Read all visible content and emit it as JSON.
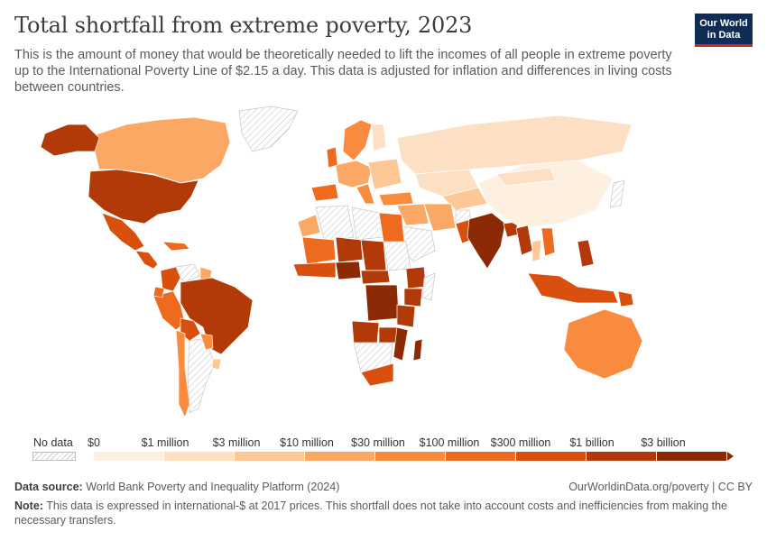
{
  "title": "Total shortfall from extreme poverty, 2023",
  "subtitle": "This is the amount of money that would be theoretically needed to lift the incomes of all people in extreme poverty up to the International Poverty Line of $2.15 a day. This data is adjusted for inflation and differences in living costs between countries.",
  "logo": {
    "line1": "Our World",
    "line2": "in Data"
  },
  "legend": {
    "no_data": "No data",
    "bins": [
      "$0",
      "$1 million",
      "$3 million",
      "$10 million",
      "$30 million",
      "$100 million",
      "$300 million",
      "$1 billion",
      "$3 billion"
    ],
    "colors": [
      "#fef0e1",
      "#fde0c4",
      "#fdc796",
      "#fca865",
      "#f98b3f",
      "#ee6a1f",
      "#d94f0e",
      "#b23a09",
      "#8c2a06"
    ]
  },
  "colors": {
    "no_data_hatch": "#d0d0d0",
    "border": "#ffffff",
    "background": "#ffffff"
  },
  "map_regions": [
    {
      "name": "Canada",
      "level": 3
    },
    {
      "name": "Alaska (United States)",
      "level": 7
    },
    {
      "name": "Greenland",
      "level": -1
    },
    {
      "name": "United States",
      "level": 7
    },
    {
      "name": "Mexico",
      "level": 6
    },
    {
      "name": "Central America",
      "level": 6
    },
    {
      "name": "Caribbean",
      "level": 5
    },
    {
      "name": "Colombia",
      "level": 6
    },
    {
      "name": "Venezuela",
      "level": -1
    },
    {
      "name": "Guyana-Suriname",
      "level": 3
    },
    {
      "name": "Brazil",
      "level": 7
    },
    {
      "name": "Peru",
      "level": 5
    },
    {
      "name": "Ecuador",
      "level": 5
    },
    {
      "name": "Bolivia",
      "level": 6
    },
    {
      "name": "Chile",
      "level": 4
    },
    {
      "name": "Argentina",
      "level": -1
    },
    {
      "name": "Paraguay",
      "level": 4
    },
    {
      "name": "Uruguay",
      "level": 2
    },
    {
      "name": "Norway-Sweden",
      "level": 4
    },
    {
      "name": "Finland",
      "level": 1
    },
    {
      "name": "Western Europe",
      "level": 3
    },
    {
      "name": "Spain-Portugal",
      "level": 5
    },
    {
      "name": "United Kingdom",
      "level": 5
    },
    {
      "name": "Italy",
      "level": 4
    },
    {
      "name": "Eastern Europe",
      "level": 2
    },
    {
      "name": "Russia",
      "level": 1
    },
    {
      "name": "Kazakhstan",
      "level": 1
    },
    {
      "name": "Central Asia",
      "level": 2
    },
    {
      "name": "Turkey",
      "level": 4
    },
    {
      "name": "Middle East",
      "level": 3
    },
    {
      "name": "Iran",
      "level": 3
    },
    {
      "name": "Saudi Arabia",
      "level": -1
    },
    {
      "name": "Afghanistan",
      "level": -1
    },
    {
      "name": "Pakistan",
      "level": 6
    },
    {
      "name": "India",
      "level": 8
    },
    {
      "name": "Bangladesh",
      "level": 7
    },
    {
      "name": "China",
      "level": 0
    },
    {
      "name": "Mongolia",
      "level": 1
    },
    {
      "name": "Myanmar",
      "level": 7
    },
    {
      "name": "Thailand",
      "level": 2
    },
    {
      "name": "Vietnam-Laos",
      "level": 5
    },
    {
      "name": "Philippines",
      "level": 7
    },
    {
      "name": "Indonesia",
      "level": 6
    },
    {
      "name": "Papua New Guinea",
      "level": 6
    },
    {
      "name": "Japan",
      "level": -1
    },
    {
      "name": "Australia",
      "level": 4
    },
    {
      "name": "Libya",
      "level": -1
    },
    {
      "name": "Algeria",
      "level": -1
    },
    {
      "name": "Morocco",
      "level": 3
    },
    {
      "name": "Egypt",
      "level": 5
    },
    {
      "name": "Sudan",
      "level": -1
    },
    {
      "name": "Mali",
      "level": 5
    },
    {
      "name": "Niger",
      "level": 7
    },
    {
      "name": "Chad",
      "level": 7
    },
    {
      "name": "West Africa coast",
      "level": 6
    },
    {
      "name": "Nigeria",
      "level": 8
    },
    {
      "name": "Central African Republic",
      "level": 7
    },
    {
      "name": "Ethiopia",
      "level": 7
    },
    {
      "name": "Somalia",
      "level": -1
    },
    {
      "name": "Kenya",
      "level": 7
    },
    {
      "name": "DR Congo",
      "level": 8
    },
    {
      "name": "Tanzania",
      "level": 7
    },
    {
      "name": "Angola",
      "level": 7
    },
    {
      "name": "Zambia",
      "level": 7
    },
    {
      "name": "Mozambique",
      "level": 8
    },
    {
      "name": "Namibia-Botswana",
      "level": -1
    },
    {
      "name": "South Africa",
      "level": 6
    },
    {
      "name": "Madagascar",
      "level": 8
    }
  ],
  "footer": {
    "source_label": "Data source:",
    "source_text": "World Bank Poverty and Inequality Platform (2024)",
    "credit": "OurWorldinData.org/poverty | CC BY",
    "note_label": "Note:",
    "note_text": "This data is expressed in international-$ at 2017 prices. This shortfall does not take into account costs and inefficiencies from making the necessary transfers."
  }
}
